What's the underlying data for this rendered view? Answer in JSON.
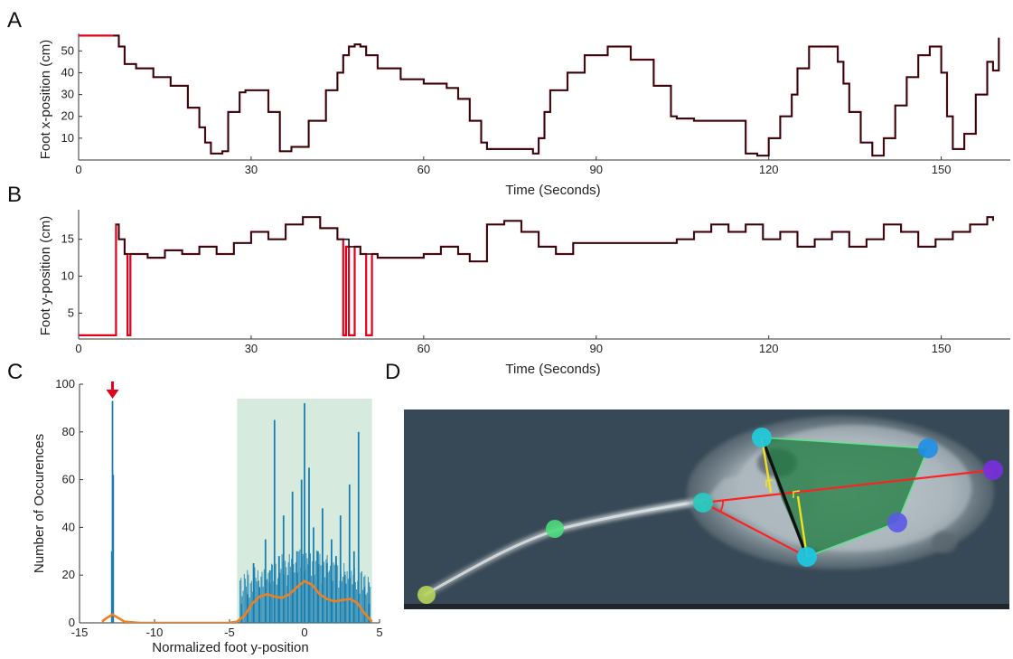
{
  "panels": [
    {
      "letter": "A"
    },
    {
      "letter": "B"
    },
    {
      "letter": "C"
    },
    {
      "letter": "D"
    }
  ],
  "chart_data": [
    {
      "id": "A",
      "type": "line",
      "xlabel": "Time (Seconds)",
      "ylabel": "Foot x-position (cm)",
      "xlim": [
        0,
        162
      ],
      "ylim": [
        0,
        58
      ],
      "xticks": [
        0,
        30,
        60,
        90,
        120,
        150
      ],
      "yticks": [
        10,
        20,
        30,
        40,
        50
      ],
      "grid": false,
      "series": [
        {
          "color": "#e3001b",
          "x": [
            0,
            6,
            7,
            8,
            10,
            13,
            16,
            19,
            21,
            22,
            23,
            25,
            26,
            28,
            29,
            30,
            31,
            33,
            35,
            37,
            40,
            43,
            45,
            46,
            47,
            48,
            49,
            50,
            52,
            56,
            60,
            62,
            64,
            66,
            68,
            70,
            71,
            72,
            74,
            76,
            78,
            79,
            80,
            81,
            82,
            85,
            88,
            92,
            96,
            100,
            103,
            104,
            105,
            107,
            108,
            110,
            112,
            114,
            116,
            118,
            120,
            122,
            124,
            125,
            127,
            130,
            132,
            133,
            134,
            136,
            138,
            140,
            142,
            144,
            146,
            148,
            149,
            150,
            151,
            152,
            154,
            156,
            158,
            159,
            160
          ],
          "y": [
            57,
            57,
            52,
            44,
            42,
            38,
            34,
            24,
            15,
            8,
            3,
            4,
            22,
            31,
            32,
            32,
            32,
            22,
            4,
            6,
            18,
            32,
            40,
            48,
            52,
            53,
            52,
            48,
            42,
            37,
            35,
            35,
            33,
            28,
            18,
            8,
            5,
            5,
            5,
            5,
            5,
            3,
            10,
            22,
            32,
            40,
            48,
            52,
            46,
            34,
            20,
            19,
            19,
            18,
            18,
            18,
            18,
            18,
            3,
            2,
            10,
            20,
            30,
            42,
            52,
            52,
            45,
            35,
            22,
            8,
            2,
            10,
            25,
            38,
            48,
            52,
            52,
            40,
            20,
            5,
            12,
            30,
            45,
            41,
            56
          ]
        },
        {
          "color": "#111111",
          "x": [
            6,
            7,
            8,
            10,
            13,
            16,
            19,
            21,
            22,
            23,
            25,
            26,
            28,
            29,
            30,
            31,
            33,
            35,
            37,
            40,
            43,
            45,
            46,
            47,
            48,
            49,
            50,
            52,
            56,
            60,
            62,
            64,
            66,
            68,
            70,
            71,
            72,
            74,
            76,
            78,
            79,
            80,
            81,
            82,
            85,
            88,
            92,
            96,
            100,
            103,
            104,
            105,
            107,
            108,
            110,
            112,
            114,
            116,
            118,
            120,
            122,
            124,
            125,
            127,
            130,
            132,
            133,
            134,
            136,
            138,
            140,
            142,
            144,
            146,
            148,
            149,
            150,
            151,
            152,
            154,
            156,
            158,
            159,
            160
          ],
          "y": [
            57,
            52,
            44,
            42,
            38,
            34,
            24,
            15,
            8,
            3,
            4,
            22,
            31,
            32,
            32,
            32,
            22,
            4,
            6,
            18,
            32,
            40,
            48,
            52,
            53,
            52,
            48,
            42,
            37,
            35,
            35,
            33,
            28,
            18,
            8,
            5,
            5,
            5,
            5,
            5,
            3,
            10,
            22,
            32,
            40,
            48,
            52,
            46,
            34,
            20,
            19,
            19,
            18,
            18,
            18,
            18,
            18,
            3,
            2,
            10,
            20,
            30,
            42,
            52,
            52,
            45,
            35,
            22,
            8,
            2,
            10,
            25,
            38,
            48,
            52,
            52,
            40,
            20,
            5,
            12,
            30,
            45,
            41,
            56
          ]
        }
      ]
    },
    {
      "id": "B",
      "type": "line",
      "xlabel": "Time (Seconds)",
      "ylabel": "Foot y-position (cm)",
      "xlim": [
        0,
        162
      ],
      "ylim": [
        1.5,
        19
      ],
      "xticks": [
        0,
        30,
        60,
        90,
        120,
        150
      ],
      "yticks": [
        5,
        10,
        15
      ],
      "grid": false,
      "series": [
        {
          "color": "#e3001b",
          "x": [
            0,
            6,
            6.5,
            7,
            8,
            8.5,
            9,
            12,
            15,
            18,
            21,
            24,
            27,
            30,
            33,
            36,
            39,
            42,
            45,
            46,
            46.5,
            47,
            48,
            49,
            50,
            51,
            52,
            55,
            58,
            60,
            63,
            66,
            68,
            70,
            71,
            74,
            77,
            80,
            83,
            86,
            90,
            95,
            100,
            104,
            107,
            110,
            113,
            116,
            119,
            122,
            125,
            128,
            131,
            134,
            137,
            140,
            143,
            146,
            149,
            152,
            155,
            158,
            159
          ],
          "y": [
            2,
            2,
            17,
            15,
            13,
            2,
            13,
            12.5,
            13.5,
            13,
            14,
            13,
            14.5,
            16,
            15,
            17,
            18,
            16.5,
            15,
            2,
            14,
            2,
            14,
            13,
            2,
            13,
            12.5,
            12.5,
            12.5,
            13,
            14,
            13,
            12,
            12,
            17,
            17.5,
            16,
            14,
            13,
            14.5,
            14.5,
            14.5,
            14.5,
            15,
            16,
            17,
            16,
            17,
            15,
            16,
            14,
            15,
            16,
            14,
            15,
            17,
            16,
            14,
            15,
            16,
            17,
            18,
            17.5
          ]
        },
        {
          "color": "#111111",
          "x": [
            6.5,
            7,
            8,
            9,
            12,
            15,
            18,
            21,
            24,
            27,
            30,
            33,
            36,
            39,
            42,
            45,
            47,
            48,
            49,
            51,
            52,
            55,
            58,
            60,
            63,
            66,
            68,
            70,
            71,
            74,
            77,
            80,
            83,
            86,
            90,
            95,
            100,
            104,
            107,
            110,
            113,
            116,
            119,
            122,
            125,
            128,
            131,
            134,
            137,
            140,
            143,
            146,
            149,
            152,
            155,
            158,
            159
          ],
          "y": [
            17,
            15,
            13,
            13,
            12.5,
            13.5,
            13,
            14,
            13,
            14.5,
            16,
            15,
            17,
            18,
            16.5,
            15,
            14,
            14,
            13,
            13,
            12.5,
            12.5,
            12.5,
            13,
            14,
            13,
            12,
            12,
            17,
            17.5,
            16,
            14,
            13,
            14.5,
            14.5,
            14.5,
            14.5,
            15,
            16,
            17,
            16,
            17,
            15,
            16,
            14,
            15,
            16,
            14,
            15,
            17,
            16,
            14,
            15,
            16,
            17,
            18,
            17.5
          ]
        }
      ]
    },
    {
      "id": "C",
      "type": "bar",
      "xlabel": "Normalized foot y-position",
      "ylabel": "Number of Occurences",
      "xlim": [
        -15,
        5
      ],
      "ylim": [
        0,
        100
      ],
      "xticks": [
        -15,
        -10,
        -5,
        0,
        5
      ],
      "yticks": [
        0,
        20,
        40,
        60,
        80,
        100
      ],
      "grid": false,
      "shaded_region": [
        -4.5,
        4.5
      ],
      "arrow_at_x": -12.8,
      "series": [
        {
          "color": "#1a7fb0",
          "x": [
            -12.85,
            -12.8,
            -12.75,
            -4.2,
            -3.8,
            -3.4,
            -3.0,
            -2.6,
            -2.3,
            -2.0,
            -1.7,
            -1.4,
            -1.1,
            -0.8,
            -0.5,
            -0.2,
            0.0,
            0.3,
            0.6,
            0.9,
            1.2,
            1.5,
            1.8,
            2.1,
            2.4,
            2.7,
            3.0,
            3.3,
            3.6,
            4.0,
            4.3
          ],
          "y": [
            30,
            93,
            62,
            8,
            12,
            25,
            15,
            35,
            22,
            85,
            28,
            45,
            20,
            55,
            30,
            60,
            92,
            65,
            40,
            30,
            48,
            25,
            35,
            28,
            45,
            20,
            58,
            30,
            80,
            15,
            8
          ]
        },
        {
          "color": "#f07f1e",
          "x": [
            -13.5,
            -13.2,
            -12.8,
            -12.4,
            -12,
            -11,
            -10,
            -5,
            -4.5,
            -4,
            -3.5,
            -3,
            -2.5,
            -2,
            -1.5,
            -1,
            -0.5,
            0,
            0.5,
            1,
            1.5,
            2,
            2.5,
            3,
            3.5,
            4,
            4.5
          ],
          "y": [
            0.5,
            2,
            3.5,
            2,
            0.5,
            0,
            0,
            0,
            0.5,
            3,
            8,
            11,
            12,
            11,
            10.5,
            12,
            15,
            17.5,
            16,
            12,
            10,
            9,
            9.5,
            10,
            8.5,
            4,
            0.5
          ]
        }
      ]
    }
  ],
  "panel_D": {
    "type": "image",
    "subject": "mouse top view with tracked body-part markers"
  }
}
